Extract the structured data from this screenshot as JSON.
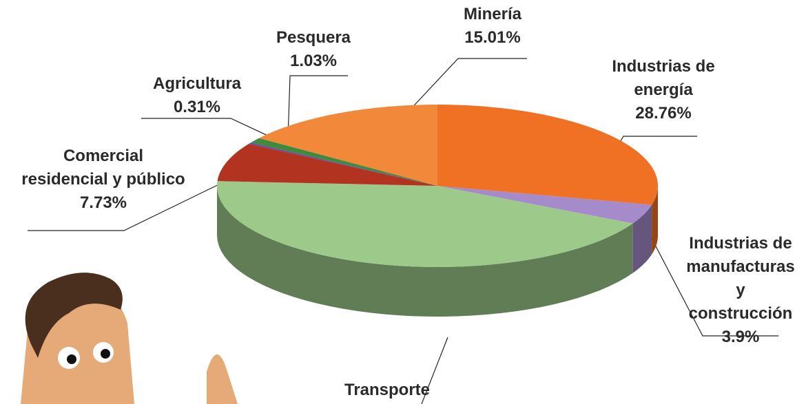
{
  "chart_data": {
    "type": "pie3d",
    "categories": [
      "Industrias de\nenergía",
      "Industrias de\nmanufacturas y\nconstrucción",
      "Transporte",
      "Comercial\nresidencial y público",
      "Agricultura",
      "Pesquera",
      "Minería"
    ],
    "values": [
      28.76,
      3.9,
      43.26,
      7.73,
      0.31,
      1.03,
      15.01
    ],
    "value_labels": [
      "28.76%",
      "3.9%",
      null,
      "7.73%",
      "0.31%",
      "1.03%",
      "15.01%"
    ],
    "colors": [
      "#f07024",
      "#a58bc9",
      "#9dca8b",
      "#b2331f",
      "#6a4fa0",
      "#3f8a3c",
      "#f2893a"
    ]
  }
}
